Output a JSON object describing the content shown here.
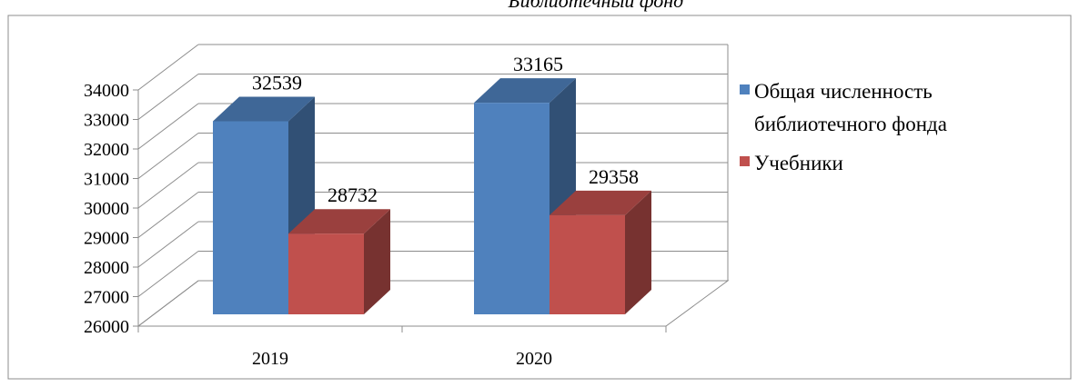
{
  "chart_data": {
    "type": "bar",
    "title": "Библиотечный фонд",
    "categories": [
      "2019",
      "2020"
    ],
    "series": [
      {
        "name": "Общая численность библиотечного фонда",
        "values": [
          32539,
          33165
        ],
        "color": "#4F81BD"
      },
      {
        "name": "Учебники",
        "values": [
          28732,
          29358
        ],
        "color": "#C0504D"
      }
    ],
    "ylim": [
      26000,
      34000
    ],
    "yticks": [
      "26000",
      "27000",
      "28000",
      "29000",
      "30000",
      "31000",
      "32000",
      "33000",
      "34000"
    ],
    "grid": true,
    "legend_position": "right",
    "style": "3d-clustered-column"
  }
}
